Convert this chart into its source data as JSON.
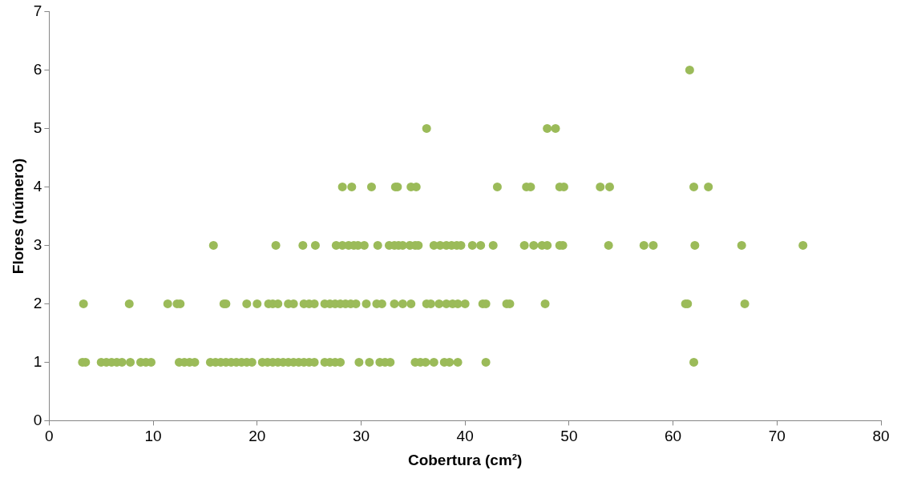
{
  "chart_data": {
    "type": "scatter",
    "xlabel": "Cobertura (cm²)",
    "ylabel": "Flores (número)",
    "color": "#9bbb59",
    "marker": "circle",
    "grid": false,
    "legend": false,
    "x": [
      3.2,
      3.5,
      5,
      5.5,
      6,
      6.5,
      7,
      7.8,
      8.8,
      9.3,
      9.8,
      12.5,
      13,
      13.5,
      14,
      15.5,
      16,
      16.5,
      17,
      17.5,
      18,
      18.5,
      19,
      19.5,
      20.5,
      21,
      21.5,
      22,
      22.5,
      23,
      23.5,
      24,
      24.5,
      25,
      25.5,
      26.5,
      27,
      27.5,
      28,
      29.8,
      30.8,
      31.8,
      32.3,
      32.8,
      35.2,
      35.7,
      36.2,
      37,
      38,
      38.5,
      39.3,
      42,
      62,
      3.3,
      7.7,
      11.4,
      12.3,
      12.6,
      16.8,
      17,
      19,
      20,
      21.1,
      21.5,
      22,
      23,
      23.5,
      24.5,
      25,
      25.5,
      26.5,
      27,
      27.5,
      28,
      28.5,
      29,
      29.5,
      30.5,
      31.5,
      32,
      33.2,
      34,
      34.8,
      36.3,
      36.7,
      37.5,
      38.2,
      38.8,
      39.3,
      40,
      41.7,
      42,
      44,
      44.3,
      47.7,
      61.2,
      61.4,
      66.9,
      15.8,
      21.8,
      24.4,
      25.6,
      27.6,
      28.2,
      28.8,
      29.3,
      29.7,
      30.3,
      31.6,
      32.7,
      33.2,
      33.6,
      34,
      34.7,
      35.2,
      35.5,
      37,
      37.6,
      38.2,
      38.7,
      39.2,
      39.6,
      40.7,
      41.5,
      42.7,
      45.7,
      46.6,
      47.4,
      47.9,
      49.1,
      49.4,
      53.8,
      57.2,
      58.1,
      62.1,
      66.6,
      72.5,
      28.2,
      29.1,
      31,
      33.3,
      33.5,
      34.8,
      35.3,
      43.1,
      45.9,
      46.3,
      49.1,
      49.5,
      53,
      53.9,
      62,
      63.4,
      36.3,
      47.9,
      48.7,
      61.6
    ],
    "values": [
      1,
      1,
      1,
      1,
      1,
      1,
      1,
      1,
      1,
      1,
      1,
      1,
      1,
      1,
      1,
      1,
      1,
      1,
      1,
      1,
      1,
      1,
      1,
      1,
      1,
      1,
      1,
      1,
      1,
      1,
      1,
      1,
      1,
      1,
      1,
      1,
      1,
      1,
      1,
      1,
      1,
      1,
      1,
      1,
      1,
      1,
      1,
      1,
      1,
      1,
      1,
      1,
      1,
      2,
      2,
      2,
      2,
      2,
      2,
      2,
      2,
      2,
      2,
      2,
      2,
      2,
      2,
      2,
      2,
      2,
      2,
      2,
      2,
      2,
      2,
      2,
      2,
      2,
      2,
      2,
      2,
      2,
      2,
      2,
      2,
      2,
      2,
      2,
      2,
      2,
      2,
      2,
      2,
      2,
      2,
      2,
      2,
      2,
      3,
      3,
      3,
      3,
      3,
      3,
      3,
      3,
      3,
      3,
      3,
      3,
      3,
      3,
      3,
      3,
      3,
      3,
      3,
      3,
      3,
      3,
      3,
      3,
      3,
      3,
      3,
      3,
      3,
      3,
      3,
      3,
      3,
      3,
      3,
      3,
      3,
      3,
      3,
      4,
      4,
      4,
      4,
      4,
      4,
      4,
      4,
      4,
      4,
      4,
      4,
      4,
      4,
      4,
      4,
      5,
      5,
      5,
      6
    ],
    "xlim": [
      0,
      80
    ],
    "xticks": [
      0,
      10,
      20,
      30,
      40,
      50,
      60,
      70,
      80
    ],
    "ylim": [
      0,
      7
    ],
    "yticks": [
      0,
      1,
      2,
      3,
      4,
      5,
      6,
      7
    ]
  }
}
